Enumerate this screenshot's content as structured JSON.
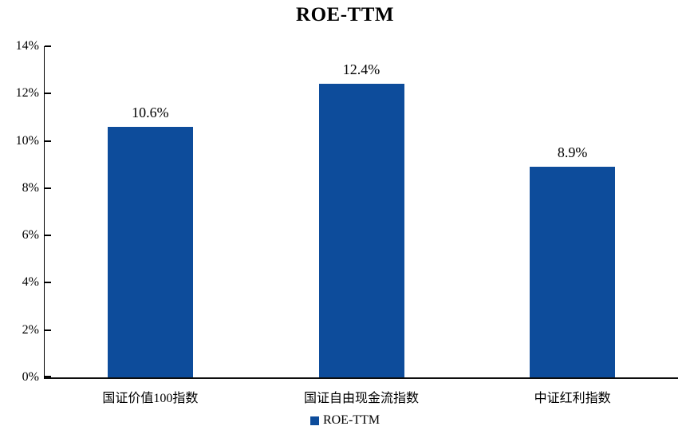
{
  "chart_data": {
    "type": "bar",
    "title": "ROE-TTM",
    "categories": [
      "国证价值100指数",
      "国证自由现金流指数",
      "中证红利指数"
    ],
    "values": [
      10.6,
      12.4,
      8.9
    ],
    "value_labels": [
      "10.6%",
      "12.4%",
      "8.9%"
    ],
    "series_name": "ROE-TTM",
    "xlabel": "",
    "ylabel": "",
    "ylim": [
      0,
      14
    ],
    "ytick_step": 2,
    "ytick_labels": [
      "0%",
      "2%",
      "4%",
      "6%",
      "8%",
      "10%",
      "12%",
      "14%"
    ],
    "grid": false,
    "legend_position": "bottom",
    "bar_color": "#0d4c9b",
    "axis_color": "#000000"
  },
  "legend": {
    "label": "ROE-TTM",
    "swatch_color": "#0d4c9b"
  }
}
